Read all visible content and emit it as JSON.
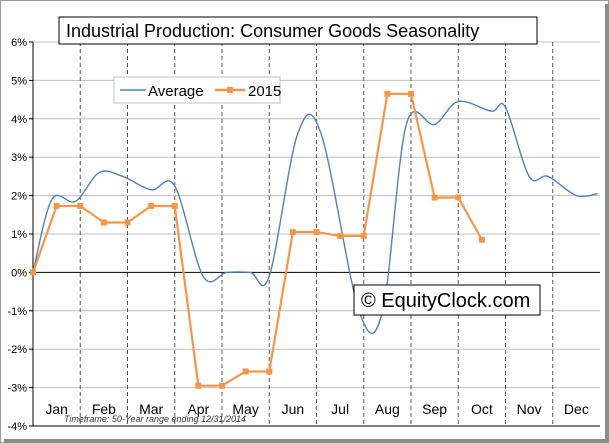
{
  "chart_data": {
    "type": "line",
    "title": "Industrial Production: Consumer Goods Seasonality",
    "watermark": "© EquityClock.com",
    "footnote": "Timeframe: 50-Year range ending 12/31/2014",
    "ylim": [
      -4,
      6
    ],
    "yticks": [
      "-4%",
      "-3%",
      "-2%",
      "-1%",
      "0%",
      "1%",
      "2%",
      "3%",
      "4%",
      "5%",
      "6%"
    ],
    "xlim": [
      0,
      12
    ],
    "months": [
      "Jan",
      "Feb",
      "Mar",
      "Apr",
      "May",
      "Jun",
      "Jul",
      "Aug",
      "Sep",
      "Oct",
      "Nov",
      "Dec"
    ],
    "grid": true,
    "legend_position": "top-left",
    "series": [
      {
        "name": "Average",
        "color": "#4f81bd",
        "x": [
          0,
          0.4,
          0.9,
          1.4,
          1.9,
          2.5,
          3.0,
          3.6,
          4.1,
          4.6,
          5.0,
          5.6,
          6.1,
          6.9,
          7.4,
          7.9,
          8.5,
          9.0,
          9.7,
          10.0,
          10.5,
          10.9,
          11.5,
          11.95
        ],
        "y": [
          0,
          1.9,
          1.85,
          2.6,
          2.5,
          2.15,
          2.25,
          -0.1,
          0,
          0,
          -0.1,
          3.6,
          3.6,
          -1,
          -1,
          3.85,
          3.85,
          4.45,
          4.2,
          4.3,
          2.5,
          2.5,
          2.0,
          2.05
        ]
      },
      {
        "name": "2015",
        "color": "#f79646",
        "x": [
          0,
          0.5,
          1.0,
          1.5,
          2.0,
          2.5,
          3.0,
          3.5,
          4.0,
          4.5,
          5.0,
          5.5,
          6.0,
          6.5,
          7.0,
          7.5,
          8.0,
          8.5,
          9.0,
          9.5
        ],
        "y": [
          0,
          1.73,
          1.73,
          1.3,
          1.3,
          1.73,
          1.73,
          -2.95,
          -2.95,
          -2.58,
          -2.58,
          1.05,
          1.05,
          0.95,
          0.95,
          4.65,
          4.65,
          1.95,
          1.95,
          0.85
        ]
      }
    ]
  }
}
